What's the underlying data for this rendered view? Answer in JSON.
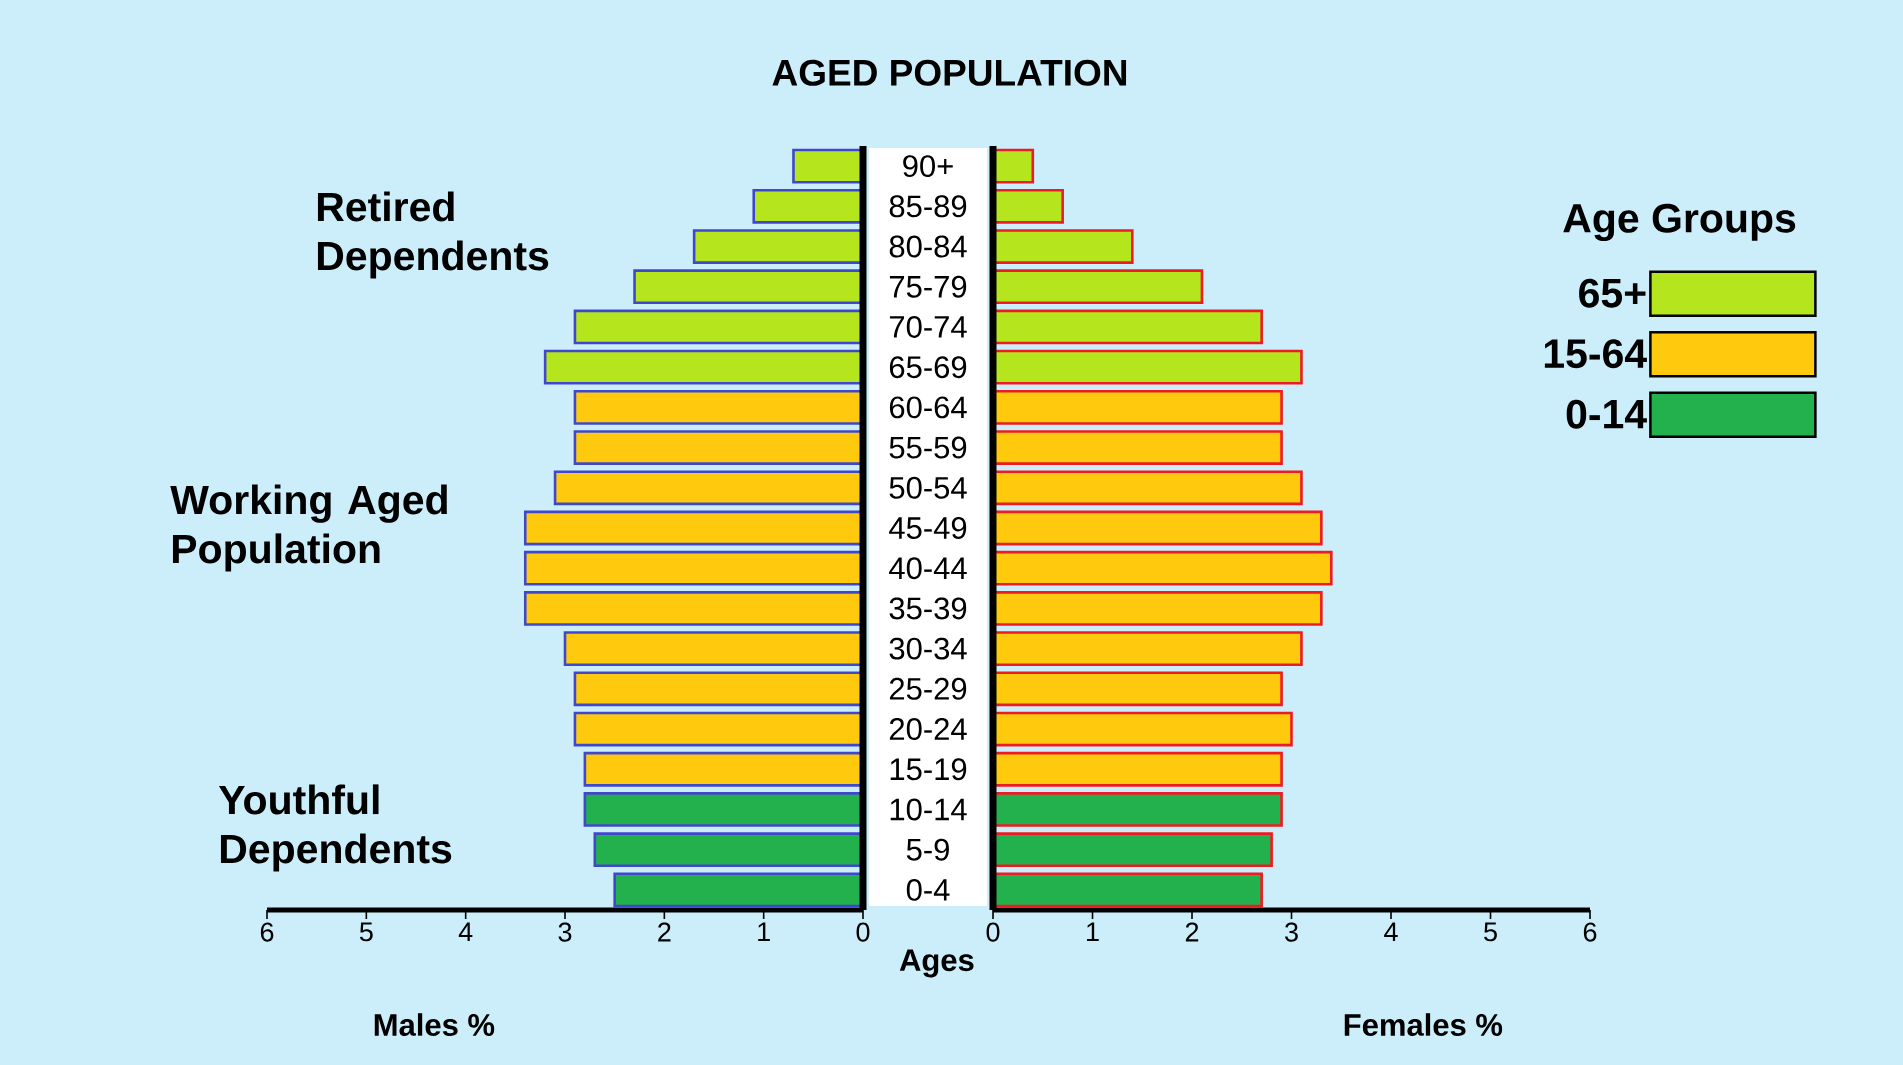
{
  "chart_data": [
    {
      "type": "bar",
      "orientation": "horizontal",
      "title": "AGED POPULATION",
      "xlabel": "Males %",
      "annotations": [
        "Retired Dependents",
        "Working Aged Population",
        "Youthful Dependents"
      ],
      "categories": [
        null,
        null,
        null,
        null,
        null,
        null,
        null,
        null,
        null,
        null,
        null,
        null,
        null,
        null,
        null,
        null,
        null,
        null,
        null
      ],
      "series": [
        {
          "color": "#b5e61d",
          "values": [
            0.7,
            1.1,
            1.7,
            2.3,
            2.9,
            3.2,
            null,
            null,
            null,
            null,
            null,
            null,
            null,
            null,
            null,
            null,
            null,
            null,
            null
          ]
        },
        {
          "color": "#ffc90e",
          "values": [
            null,
            null,
            null,
            null,
            null,
            null,
            2.9,
            2.9,
            3.1,
            3.4,
            3.4,
            3.4,
            3.0,
            2.9,
            2.9,
            2.8,
            null,
            null,
            null
          ]
        },
        {
          "color": "#22b14c",
          "values": [
            null,
            null,
            null,
            null,
            null,
            null,
            null,
            null,
            null,
            null,
            null,
            null,
            null,
            null,
            null,
            null,
            2.8,
            2.7,
            2.5
          ]
        }
      ],
      "xlim": [
        6,
        0
      ],
      "xticks": [
        0,
        1,
        2,
        3,
        4,
        5,
        6
      ],
      "tick_labels": "x"
    },
    {
      "type": "bar",
      "orientation": "horizontal",
      "xlabel": "Females %",
      "ylabel": "Ages",
      "legend_title": "Age Groups",
      "categories": [
        "90+",
        "85-89",
        "80-84",
        "75-79",
        "70-74",
        "65-69",
        "60-64",
        "55-59",
        "50-54",
        "45-49",
        "40-44",
        "35-39",
        "30-34",
        "25-29",
        "20-24",
        "15-19",
        "10-14",
        "5-9",
        "0-4"
      ],
      "series": [
        {
          "name": "65+",
          "color": "#b5e61d",
          "values": [
            0.4,
            0.7,
            1.4,
            2.1,
            2.7,
            3.1,
            null,
            null,
            null,
            null,
            null,
            null,
            null,
            null,
            null,
            null,
            null,
            null,
            null
          ]
        },
        {
          "name": "15-64",
          "color": "#ffc90e",
          "values": [
            null,
            null,
            null,
            null,
            null,
            null,
            2.9,
            2.9,
            3.1,
            3.3,
            3.4,
            3.3,
            3.1,
            2.9,
            3.0,
            2.9,
            null,
            null,
            null
          ]
        },
        {
          "name": "0-14",
          "color": "#22b14c",
          "values": [
            null,
            null,
            null,
            null,
            null,
            null,
            null,
            null,
            null,
            null,
            null,
            null,
            null,
            null,
            null,
            null,
            2.9,
            2.8,
            2.7
          ]
        }
      ],
      "xlim": [
        0,
        6
      ],
      "xticks": [
        0,
        1,
        2,
        3,
        4,
        5,
        6
      ],
      "legend": "right"
    }
  ]
}
